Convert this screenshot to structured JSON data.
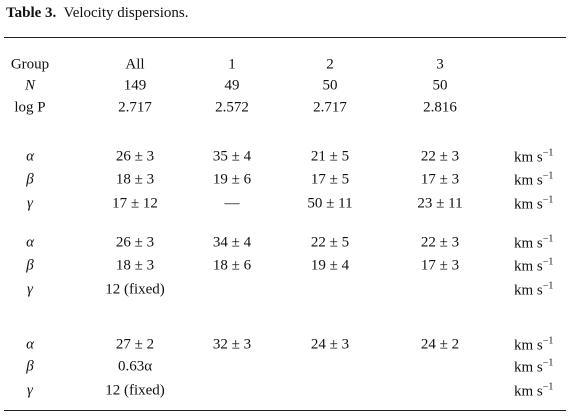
{
  "caption": {
    "label": "Table 3.",
    "text": "Velocity dispersions."
  },
  "header": {
    "rows": [
      [
        "Group",
        "All",
        "1",
        "2",
        "3"
      ],
      [
        "N",
        "149",
        "49",
        "50",
        "50"
      ],
      [
        "log P",
        "2.717",
        "2.572",
        "2.717",
        "2.816"
      ]
    ]
  },
  "blocks": [
    [
      {
        "cells": [
          "α",
          "26 ± 3",
          "35 ± 4",
          "21 ± 5",
          "22 ± 3"
        ],
        "unit": {
          "base": "km s",
          "exp": "−1"
        }
      },
      {
        "cells": [
          "β",
          "18 ± 3",
          "19 ± 6",
          "17 ± 5",
          "17 ± 3"
        ],
        "unit": {
          "base": "km s",
          "exp": "−1"
        }
      },
      {
        "cells": [
          "γ",
          "17 ± 12",
          "—",
          "50 ± 11",
          "23 ± 11"
        ],
        "unit": {
          "base": "km s",
          "exp": "−1"
        }
      }
    ],
    [
      {
        "cells": [
          "α",
          "26 ± 3",
          "34 ± 4",
          "22 ± 5",
          "22 ± 3"
        ],
        "unit": {
          "base": "km s",
          "exp": "−1"
        }
      },
      {
        "cells": [
          "β",
          "18 ± 3",
          "18 ± 6",
          "19 ± 4",
          "17 ± 3"
        ],
        "unit": {
          "base": "km s",
          "exp": "−1"
        }
      },
      {
        "cells": [
          "γ",
          "12 (fixed)",
          null,
          null,
          null
        ],
        "unit": {
          "base": "km s",
          "exp": "−1"
        }
      }
    ],
    [
      {
        "cells": [
          "α",
          "27 ± 2",
          "32 ± 3",
          "24 ± 3",
          "24 ± 2"
        ],
        "unit": {
          "base": "km s",
          "exp": "−1"
        }
      },
      {
        "cells": [
          "β",
          "0.63α",
          null,
          null,
          null
        ],
        "unit": {
          "base": "km s",
          "exp": "−1"
        }
      },
      {
        "cells": [
          "γ",
          "12 (fixed)",
          null,
          null,
          null
        ],
        "unit": {
          "base": "km s",
          "exp": "−1"
        }
      }
    ]
  ]
}
